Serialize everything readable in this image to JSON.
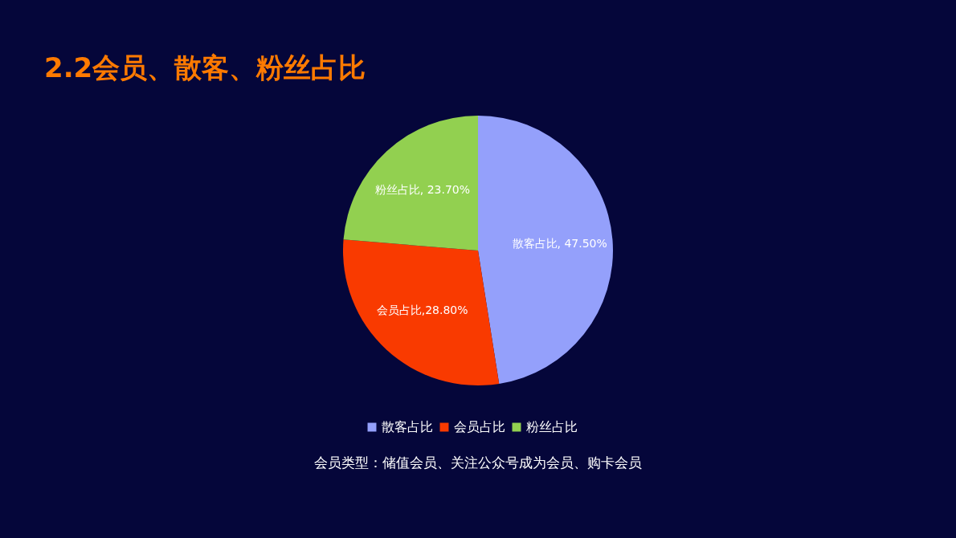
{
  "chart_data": {
    "type": "pie",
    "title": "2.2会员、散客、粉丝占比",
    "categories": [
      "散客占比",
      "会员占比",
      "粉丝占比"
    ],
    "values": [
      47.5,
      28.8,
      23.7
    ],
    "colors": [
      "#94a0fb",
      "#f93a00",
      "#92d050"
    ],
    "value_labels": [
      "散客占比, 47.50%",
      "会员占比,28.80%",
      "粉丝占比, 23.70%"
    ],
    "legend": "bottom",
    "annotations": [
      "会员类型：储值会员、关注公众号成为会员、购卡会员"
    ]
  }
}
